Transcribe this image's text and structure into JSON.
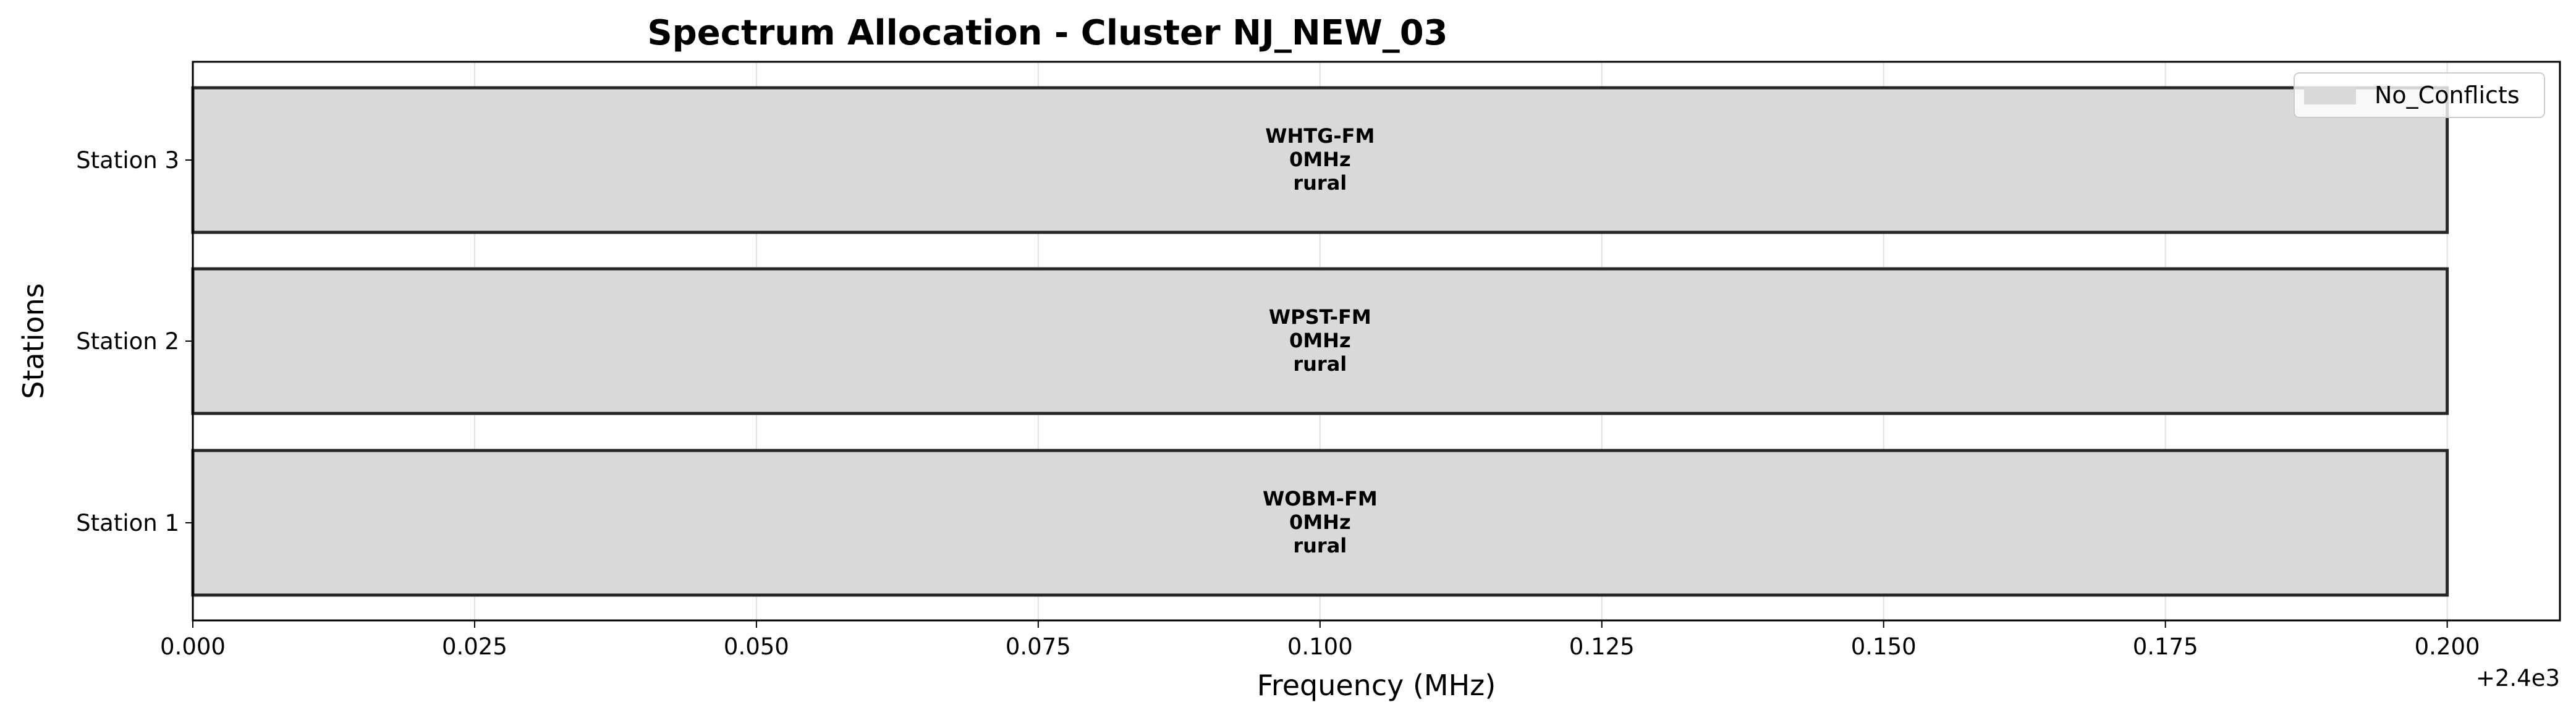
{
  "chart_data": {
    "type": "bar",
    "orientation": "horizontal",
    "title": "Spectrum Allocation - Cluster NJ_NEW_03",
    "xlabel": "Frequency (MHz)",
    "ylabel": "Stations",
    "x_offset_label": "+2.4e3",
    "xlim": [
      0.0,
      0.21
    ],
    "x_ticks": [
      0.0,
      0.025,
      0.05,
      0.075,
      0.1,
      0.125,
      0.15,
      0.175,
      0.2
    ],
    "x_tick_labels": [
      "0.000",
      "0.025",
      "0.050",
      "0.075",
      "0.100",
      "0.125",
      "0.150",
      "0.175",
      "0.200"
    ],
    "grid": true,
    "legend": {
      "placement": "top-right",
      "entries": [
        {
          "label": "No_Conflicts",
          "color": "#d9d9d9"
        }
      ]
    },
    "bars": [
      {
        "station": "Station 1",
        "x_start": 0.0,
        "x_end": 0.2,
        "line1": "WOBM-FM",
        "line2": "0MHz",
        "line3": "rural",
        "color": "#d9d9d9"
      },
      {
        "station": "Station 2",
        "x_start": 0.0,
        "x_end": 0.2,
        "line1": "WPST-FM",
        "line2": "0MHz",
        "line3": "rural",
        "color": "#d9d9d9"
      },
      {
        "station": "Station 3",
        "x_start": 0.0,
        "x_end": 0.2,
        "line1": "WHTG-FM",
        "line2": "0MHz",
        "line3": "rural",
        "color": "#d9d9d9"
      }
    ],
    "colors": {
      "bar_fill": "#d9d9d9",
      "bar_edge": "#262626",
      "grid": "#e0e0e0",
      "axis": "#000000"
    }
  }
}
